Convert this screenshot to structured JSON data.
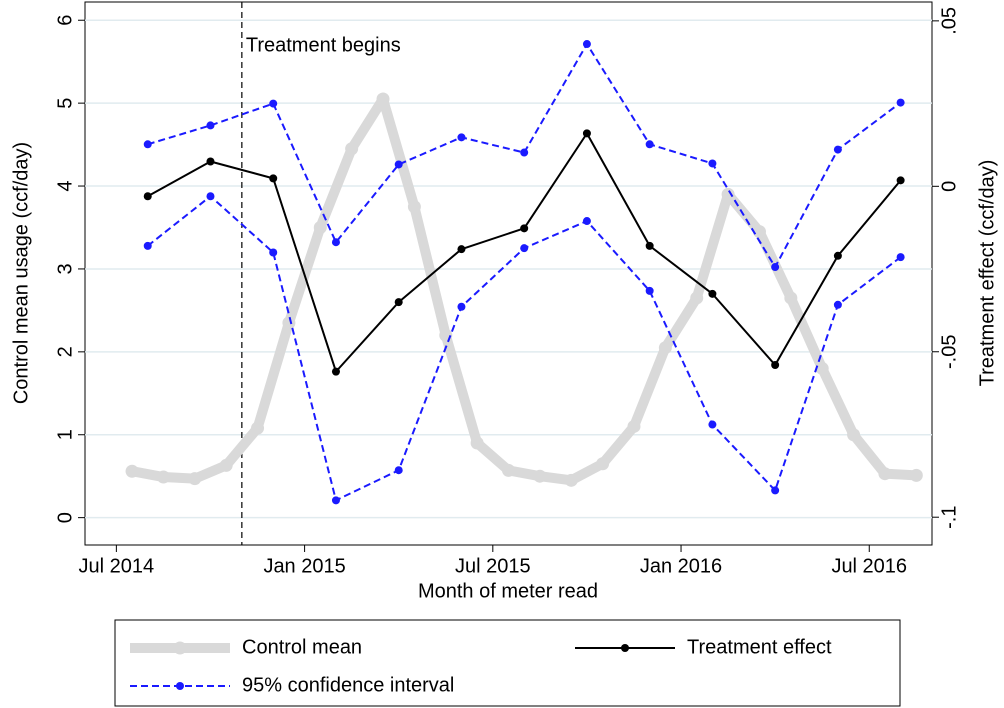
{
  "chart_data": {
    "type": "line",
    "x_label": "Month of meter read",
    "y_label": "Control mean usage (ccf/day)",
    "y2_label": "Treatment effect (ccf/day)",
    "xlim": [
      "2014-06",
      "2016-09"
    ],
    "xticks": [
      {
        "value": "2014-07",
        "label": "Jul 2014"
      },
      {
        "value": "2015-01",
        "label": "Jan 2015"
      },
      {
        "value": "2015-07",
        "label": "Jul 2015"
      },
      {
        "value": "2016-01",
        "label": "Jan 2016"
      },
      {
        "value": "2016-07",
        "label": "Jul 2016"
      }
    ],
    "ylim": [
      -0.33,
      6.22
    ],
    "yticks": [
      0,
      1,
      2,
      3,
      4,
      5,
      6
    ],
    "y2lim": [
      -0.1084,
      0.0557
    ],
    "y2ticks": [
      {
        "value": 0.05,
        "label": ".05"
      },
      0,
      {
        "value": -0.05,
        "label": "-.05"
      },
      {
        "value": -0.1,
        "label": "-.1"
      }
    ],
    "grid": true,
    "annotation": {
      "text": "Treatment begins",
      "x": "2014-11"
    },
    "series": [
      {
        "name": "Control mean",
        "color": "#d9d9d9",
        "x": [
          "2014-07",
          "2014-08",
          "2014-09",
          "2014-10",
          "2014-11",
          "2014-12",
          "2015-01",
          "2015-02",
          "2015-03",
          "2015-04",
          "2015-05",
          "2015-06",
          "2015-07",
          "2015-08",
          "2015-09",
          "2015-10",
          "2015-11",
          "2015-12",
          "2016-01",
          "2016-02",
          "2016-03",
          "2016-04",
          "2016-05",
          "2016-06",
          "2016-07",
          "2016-08"
        ],
        "values": [
          0.56,
          0.49,
          0.47,
          0.63,
          1.08,
          2.35,
          3.5,
          4.45,
          5.05,
          3.75,
          2.2,
          0.9,
          0.57,
          0.5,
          0.45,
          0.65,
          1.1,
          2.05,
          2.65,
          3.9,
          3.45,
          2.65,
          1.8,
          1.0,
          0.53,
          0.51
        ]
      },
      {
        "name": "Treatment effect",
        "color": "#000000",
        "axis": "y2",
        "x": [
          "2014-07",
          "2014-09",
          "2014-11",
          "2015-01",
          "2015-03",
          "2015-05",
          "2015-07",
          "2015-09",
          "2015-11",
          "2016-01",
          "2016-03",
          "2016-05",
          "2016-07"
        ],
        "values": [
          -0.003,
          0.0075,
          0.0024,
          -0.056,
          -0.035,
          -0.019,
          -0.0127,
          0.016,
          -0.018,
          -0.0325,
          -0.054,
          -0.021,
          0.0018
        ]
      },
      {
        "name": "95% confidence interval",
        "color": "#1a1aff",
        "axis": "y2",
        "dashed": true,
        "x": [
          "2014-07",
          "2014-09",
          "2014-11",
          "2015-01",
          "2015-03",
          "2015-05",
          "2015-07",
          "2015-09",
          "2015-11",
          "2016-01",
          "2016-03",
          "2016-05",
          "2016-07"
        ],
        "upper": [
          0.0127,
          0.0184,
          0.025,
          -0.0169,
          0.0066,
          0.0148,
          0.0102,
          0.043,
          0.0127,
          0.0069,
          -0.0244,
          0.0111,
          0.0253
        ],
        "lower": [
          -0.018,
          -0.003,
          -0.02,
          -0.0949,
          -0.0858,
          -0.0364,
          -0.0187,
          -0.0105,
          -0.0316,
          -0.072,
          -0.0919,
          -0.0358,
          -0.0214
        ]
      }
    ]
  }
}
